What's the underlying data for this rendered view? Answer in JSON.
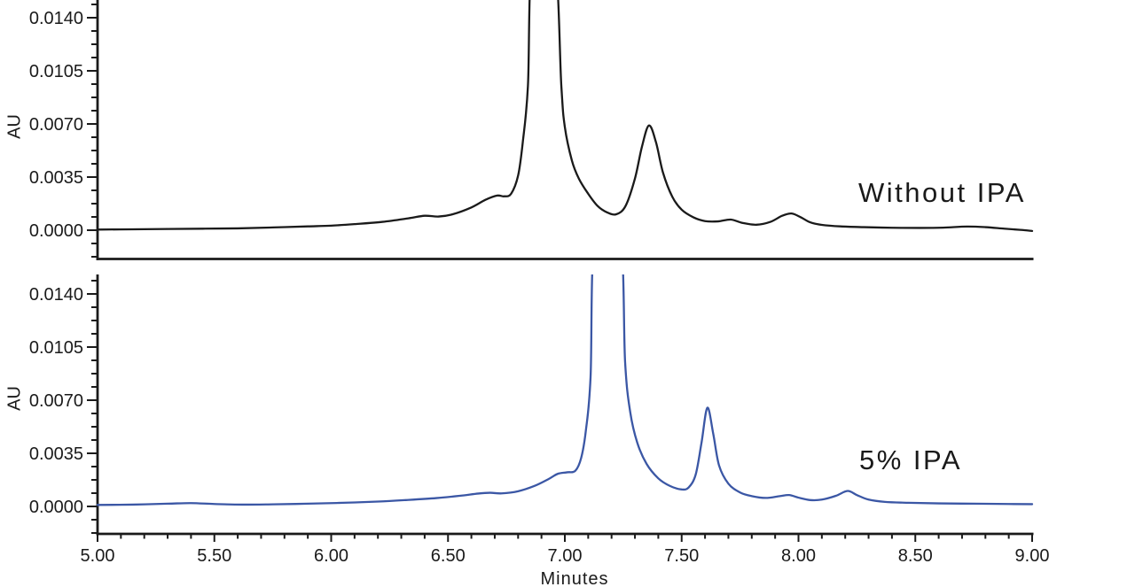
{
  "figure": {
    "background": "#ffffff",
    "axis_color": "#1a1a1a",
    "text_color": "#1a1a1a"
  },
  "x_axis": {
    "label": "Minutes",
    "range": [
      5.0,
      9.0
    ],
    "major_ticks": [
      "5.00",
      "5.50",
      "6.00",
      "6.50",
      "7.00",
      "7.50",
      "8.00",
      "8.50",
      "9.00"
    ],
    "minor_tick_interval": 0.1
  },
  "y_axis": {
    "label": "AU",
    "major_ticks": [
      "0.0000",
      "0.0035",
      "0.0070",
      "0.0105",
      "0.0140"
    ],
    "minor_ticks_per_major": 4
  },
  "panels": [
    {
      "id": "without-ipa",
      "annotation": "Without IPA"
    },
    {
      "id": "5pct-ipa",
      "annotation": "5% IPA"
    }
  ],
  "chart_data": [
    {
      "type": "line",
      "title": "Without IPA",
      "xlabel": "Minutes",
      "ylabel": "AU",
      "xlim": [
        5.0,
        9.0
      ],
      "ylim": [
        -0.0019,
        0.0152
      ],
      "grid": false,
      "legend": "none",
      "line_color": "#1a1a1a",
      "note": "main peak at ~6.9 min is off-scale (clipped at panel top); units AU vs minutes",
      "series": [
        {
          "name": "Without IPA",
          "points": [
            [
              5.0,
              4e-05
            ],
            [
              5.15,
              6e-05
            ],
            [
              5.3,
              8e-05
            ],
            [
              5.45,
              0.0001
            ],
            [
              5.6,
              0.00012
            ],
            [
              5.75,
              0.00018
            ],
            [
              5.9,
              0.00025
            ],
            [
              6.0,
              0.0003
            ],
            [
              6.1,
              0.0004
            ],
            [
              6.22,
              0.00055
            ],
            [
              6.33,
              0.00078
            ],
            [
              6.4,
              0.00095
            ],
            [
              6.46,
              0.0009
            ],
            [
              6.52,
              0.00105
            ],
            [
              6.6,
              0.0015
            ],
            [
              6.66,
              0.002
            ],
            [
              6.71,
              0.00228
            ],
            [
              6.74,
              0.00223
            ],
            [
              6.77,
              0.0024
            ],
            [
              6.8,
              0.0036
            ],
            [
              6.82,
              0.0058
            ],
            [
              6.842,
              0.0095
            ],
            [
              6.862,
              0.018
            ],
            [
              6.955,
              0.018
            ],
            [
              6.985,
              0.0095
            ],
            [
              7.0,
              0.0068
            ],
            [
              7.03,
              0.0046
            ],
            [
              7.06,
              0.0034
            ],
            [
              7.1,
              0.0024
            ],
            [
              7.14,
              0.0016
            ],
            [
              7.18,
              0.00118
            ],
            [
              7.22,
              0.00105
            ],
            [
              7.26,
              0.0016
            ],
            [
              7.3,
              0.0034
            ],
            [
              7.33,
              0.0055
            ],
            [
              7.36,
              0.0069
            ],
            [
              7.39,
              0.0058
            ],
            [
              7.42,
              0.0038
            ],
            [
              7.46,
              0.0022
            ],
            [
              7.5,
              0.00135
            ],
            [
              7.55,
              0.00085
            ],
            [
              7.6,
              0.0006
            ],
            [
              7.655,
              0.00058
            ],
            [
              7.71,
              0.0007
            ],
            [
              7.76,
              0.00048
            ],
            [
              7.82,
              0.00036
            ],
            [
              7.88,
              0.00055
            ],
            [
              7.93,
              0.00095
            ],
            [
              7.97,
              0.0011
            ],
            [
              8.01,
              0.00085
            ],
            [
              8.05,
              0.00052
            ],
            [
              8.1,
              0.00035
            ],
            [
              8.18,
              0.00025
            ],
            [
              8.28,
              0.0002
            ],
            [
              8.4,
              0.00016
            ],
            [
              8.52,
              0.00015
            ],
            [
              8.62,
              0.00017
            ],
            [
              8.72,
              0.00024
            ],
            [
              8.8,
              0.0002
            ],
            [
              8.88,
              0.0001
            ],
            [
              8.95,
              2e-05
            ],
            [
              9.0,
              -5e-05
            ]
          ]
        }
      ]
    },
    {
      "type": "line",
      "title": "5% IPA",
      "xlabel": "Minutes",
      "ylabel": "AU",
      "xlim": [
        5.0,
        9.0
      ],
      "ylim": [
        -0.0018,
        0.0153
      ],
      "grid": false,
      "legend": "none",
      "line_color": "#3b57a5",
      "note": "main peak at ~7.2 min is off-scale (clipped at panel top); units AU vs minutes",
      "series": [
        {
          "name": "5% IPA",
          "points": [
            [
              5.0,
              0.0001
            ],
            [
              5.15,
              0.00012
            ],
            [
              5.3,
              0.00018
            ],
            [
              5.4,
              0.00022
            ],
            [
              5.5,
              0.00016
            ],
            [
              5.62,
              0.00012
            ],
            [
              5.75,
              0.00014
            ],
            [
              5.9,
              0.00018
            ],
            [
              6.05,
              0.00024
            ],
            [
              6.2,
              0.00032
            ],
            [
              6.32,
              0.00042
            ],
            [
              6.45,
              0.00055
            ],
            [
              6.55,
              0.0007
            ],
            [
              6.63,
              0.00085
            ],
            [
              6.68,
              0.0009
            ],
            [
              6.73,
              0.00086
            ],
            [
              6.8,
              0.001
            ],
            [
              6.87,
              0.00135
            ],
            [
              6.93,
              0.0018
            ],
            [
              6.97,
              0.00215
            ],
            [
              7.01,
              0.00225
            ],
            [
              7.045,
              0.00235
            ],
            [
              7.07,
              0.0032
            ],
            [
              7.09,
              0.005
            ],
            [
              7.11,
              0.0085
            ],
            [
              7.13,
              0.018
            ],
            [
              7.235,
              0.018
            ],
            [
              7.258,
              0.0095
            ],
            [
              7.28,
              0.0062
            ],
            [
              7.31,
              0.0042
            ],
            [
              7.35,
              0.0028
            ],
            [
              7.4,
              0.00185
            ],
            [
              7.45,
              0.00135
            ],
            [
              7.5,
              0.00112
            ],
            [
              7.53,
              0.00125
            ],
            [
              7.56,
              0.0021
            ],
            [
              7.585,
              0.0042
            ],
            [
              7.61,
              0.0065
            ],
            [
              7.635,
              0.0048
            ],
            [
              7.66,
              0.0027
            ],
            [
              7.7,
              0.0015
            ],
            [
              7.75,
              0.00092
            ],
            [
              7.8,
              0.00068
            ],
            [
              7.86,
              0.00056
            ],
            [
              7.92,
              0.00068
            ],
            [
              7.96,
              0.00075
            ],
            [
              8.0,
              0.00058
            ],
            [
              8.05,
              0.00042
            ],
            [
              8.1,
              0.00045
            ],
            [
              8.16,
              0.0007
            ],
            [
              8.21,
              0.00102
            ],
            [
              8.25,
              0.00075
            ],
            [
              8.3,
              0.00045
            ],
            [
              8.37,
              0.0003
            ],
            [
              8.47,
              0.00024
            ],
            [
              8.6,
              0.0002
            ],
            [
              8.75,
              0.00018
            ],
            [
              8.9,
              0.00016
            ],
            [
              9.0,
              0.00015
            ]
          ]
        }
      ]
    }
  ]
}
